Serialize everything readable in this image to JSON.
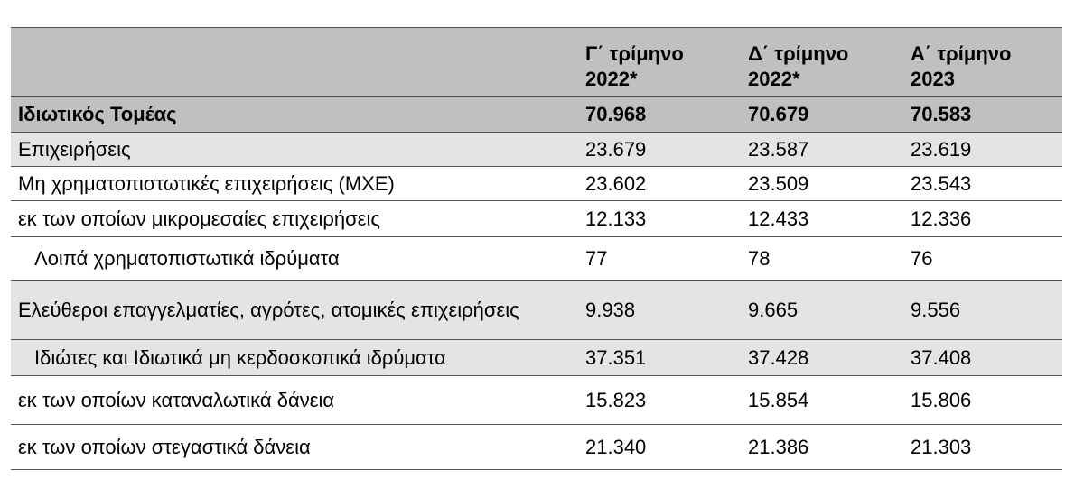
{
  "table": {
    "header": [
      "",
      "Γ΄ τρίμηνο 2022*",
      "Δ΄ τρίμηνο 2022*",
      "Α΄ τρίμηνο 2023"
    ],
    "rows": [
      [
        "Ιδιωτικός Τομέας",
        "70.968",
        "70.679",
        "70.583"
      ],
      [
        "Επιχειρήσεις",
        "23.679",
        "23.587",
        "23.619"
      ],
      [
        "Μη χρηματοπιστωτικές επιχειρήσεις (ΜΧΕ)",
        "23.602",
        "23.509",
        "23.543"
      ],
      [
        "εκ των οποίων μικρομεσαίες επιχειρήσεις",
        "12.133",
        "12.433",
        "12.336"
      ],
      [
        "Λοιπά χρηματοπιστωτικά ιδρύματα",
        "77",
        "78",
        "76"
      ],
      [
        "Ελεύθεροι επαγγελματίες, αγρότες, ατομικές επιχειρήσεις",
        "9.938",
        "9.665",
        "9.556"
      ],
      [
        "Ιδιώτες και Ιδιωτικά μη κερδοσκοπικά ιδρύματα",
        "37.351",
        "37.428",
        "37.408"
      ],
      [
        "εκ των οποίων καταναλωτικά δάνεια",
        "15.823",
        "15.854",
        "15.806"
      ],
      [
        "εκ των οποίων στεγαστικά δάνεια",
        "21.340",
        "21.386",
        "21.303"
      ]
    ]
  }
}
